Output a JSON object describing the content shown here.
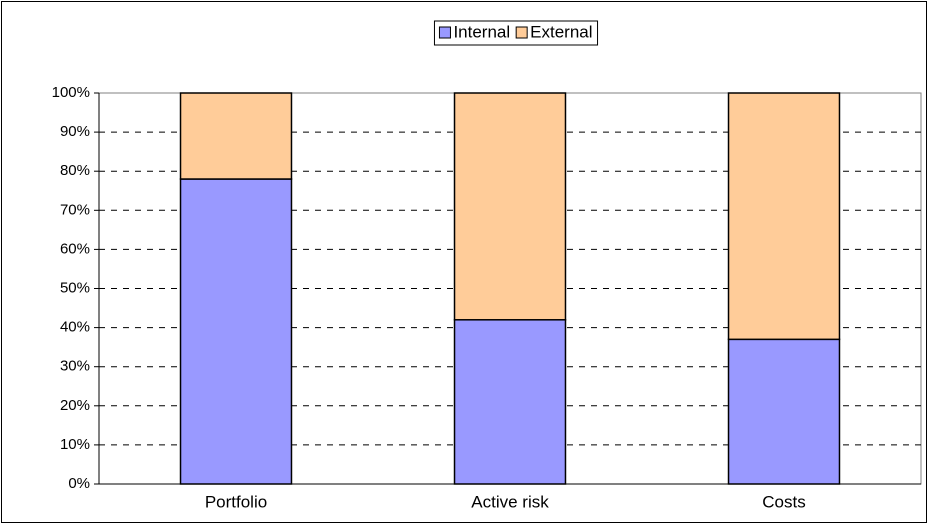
{
  "chart_data": {
    "type": "stacked-bar",
    "categories": [
      "Portfolio",
      "Active risk",
      "Costs"
    ],
    "series": [
      {
        "name": "Internal",
        "color": "#9999ff",
        "values": [
          78,
          42,
          37
        ]
      },
      {
        "name": "External",
        "color": "#ffcc99",
        "values": [
          22,
          58,
          63
        ]
      }
    ],
    "ylim": [
      0,
      100
    ],
    "yticks": [
      {
        "value": 0,
        "label": "0%"
      },
      {
        "value": 10,
        "label": "10%"
      },
      {
        "value": 20,
        "label": "20%"
      },
      {
        "value": 30,
        "label": "30%"
      },
      {
        "value": 40,
        "label": "40%"
      },
      {
        "value": 50,
        "label": "50%"
      },
      {
        "value": 60,
        "label": "60%"
      },
      {
        "value": 70,
        "label": "70%"
      },
      {
        "value": 80,
        "label": "80%"
      },
      {
        "value": 90,
        "label": "90%"
      },
      {
        "value": 100,
        "label": "100%"
      }
    ],
    "grid": true,
    "legend": "top"
  }
}
